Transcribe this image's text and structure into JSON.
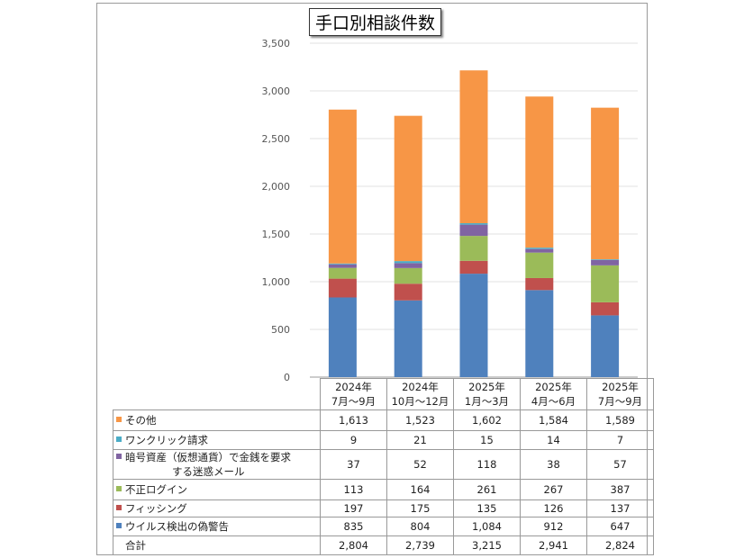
{
  "chart_data": {
    "type": "bar",
    "stacked": true,
    "title": "手口別相談件数",
    "categories": [
      [
        "2024年",
        "7月～9月"
      ],
      [
        "2024年",
        "10月～12月"
      ],
      [
        "2025年",
        "1月～3月"
      ],
      [
        "2025年",
        "4月～6月"
      ],
      [
        "2025年",
        "7月～9月"
      ]
    ],
    "ylim": [
      0,
      3500
    ],
    "yticks": [
      "0",
      "500",
      "1,000",
      "1,500",
      "2,000",
      "2,500",
      "3,000",
      "3,500"
    ],
    "grid": true,
    "legend": "data-table",
    "series": [
      {
        "name": "ウイルス検出の偽警告",
        "color": "#4F81BD",
        "values": [
          835,
          804,
          1084,
          912,
          647
        ],
        "labels": [
          "835",
          "804",
          "1,084",
          "912",
          "647"
        ]
      },
      {
        "name": "フィッシング",
        "color": "#C0504D",
        "values": [
          197,
          175,
          135,
          126,
          137
        ],
        "labels": [
          "197",
          "175",
          "135",
          "126",
          "137"
        ]
      },
      {
        "name": "不正ログイン",
        "color": "#9BBB59",
        "values": [
          113,
          164,
          261,
          267,
          387
        ],
        "labels": [
          "113",
          "164",
          "261",
          "267",
          "387"
        ]
      },
      {
        "name": "暗号資産（仮想通貨）で金銭を要求する迷惑メール",
        "color": "#8064A2",
        "values": [
          37,
          52,
          118,
          38,
          57
        ],
        "labels": [
          "37",
          "52",
          "118",
          "38",
          "57"
        ]
      },
      {
        "name": "ワンクリック請求",
        "color": "#4BACC6",
        "values": [
          9,
          21,
          15,
          14,
          7
        ],
        "labels": [
          "9",
          "21",
          "15",
          "14",
          "7"
        ]
      },
      {
        "name": "その他",
        "color": "#F79646",
        "values": [
          1613,
          1523,
          1602,
          1584,
          1589
        ],
        "labels": [
          "1,613",
          "1,523",
          "1,602",
          "1,584",
          "1,589"
        ]
      }
    ],
    "total": {
      "name": "合計",
      "values": [
        2804,
        2739,
        3215,
        2941,
        2824
      ],
      "labels": [
        "2,804",
        "2,739",
        "3,215",
        "2,941",
        "2,824"
      ]
    }
  }
}
